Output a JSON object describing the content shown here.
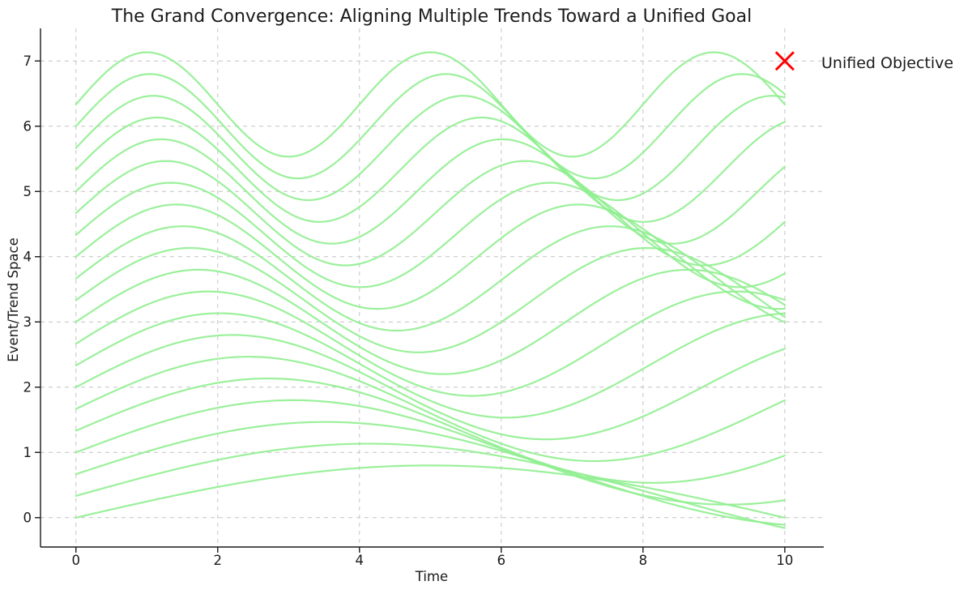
{
  "figure": {
    "background": "#ffffff",
    "text_color": "#1a1a1a"
  },
  "chart_data": {
    "type": "line",
    "title": "The Grand Convergence: Aligning Multiple Trends Toward a Unified Goal",
    "xlabel": "Time",
    "ylabel": "Event/Trend Space",
    "xlim": [
      -0.5,
      10.55
    ],
    "ylim": [
      -0.45,
      7.5
    ],
    "xticks": [
      0,
      2,
      4,
      6,
      8,
      10
    ],
    "yticks": [
      0,
      1,
      2,
      3,
      4,
      5,
      6,
      7
    ],
    "grid": true,
    "grid_color": "#c4c4c4",
    "grid_dash": "5 5",
    "spine_color": "#1a1a1a",
    "line_color": "#90EE90",
    "line_alpha": 0.9,
    "line_width": 2.2,
    "x_sampling": {
      "start": 0,
      "end": 10,
      "step": 0.05
    },
    "model": "y(x) = offset + amplitude * sin(frequency * x)",
    "amplitude": 0.8,
    "series": [
      {
        "offset": 0.0,
        "frequency": 0.3142
      },
      {
        "offset": 0.3333,
        "frequency": 0.3803
      },
      {
        "offset": 0.6667,
        "frequency": 0.4465
      },
      {
        "offset": 1.0,
        "frequency": 0.5126
      },
      {
        "offset": 1.3333,
        "frequency": 0.5787
      },
      {
        "offset": 1.6667,
        "frequency": 0.6449
      },
      {
        "offset": 2.0,
        "frequency": 0.711
      },
      {
        "offset": 2.3333,
        "frequency": 0.7771
      },
      {
        "offset": 2.6667,
        "frequency": 0.8433
      },
      {
        "offset": 3.0,
        "frequency": 0.9094
      },
      {
        "offset": 3.3333,
        "frequency": 0.9755
      },
      {
        "offset": 3.6667,
        "frequency": 1.0417
      },
      {
        "offset": 4.0,
        "frequency": 1.1078
      },
      {
        "offset": 4.3333,
        "frequency": 1.1739
      },
      {
        "offset": 4.6667,
        "frequency": 1.24
      },
      {
        "offset": 5.0,
        "frequency": 1.3062
      },
      {
        "offset": 5.3333,
        "frequency": 1.3723
      },
      {
        "offset": 5.6667,
        "frequency": 1.4384
      },
      {
        "offset": 6.0,
        "frequency": 1.5046
      },
      {
        "offset": 6.3333,
        "frequency": 1.5708
      }
    ],
    "annotation": {
      "x": 10,
      "y": 7,
      "label": "Unified Objective",
      "marker": "x",
      "marker_color": "#ff0000",
      "text_color": "#1a1a1a"
    },
    "legend_position": "none"
  }
}
